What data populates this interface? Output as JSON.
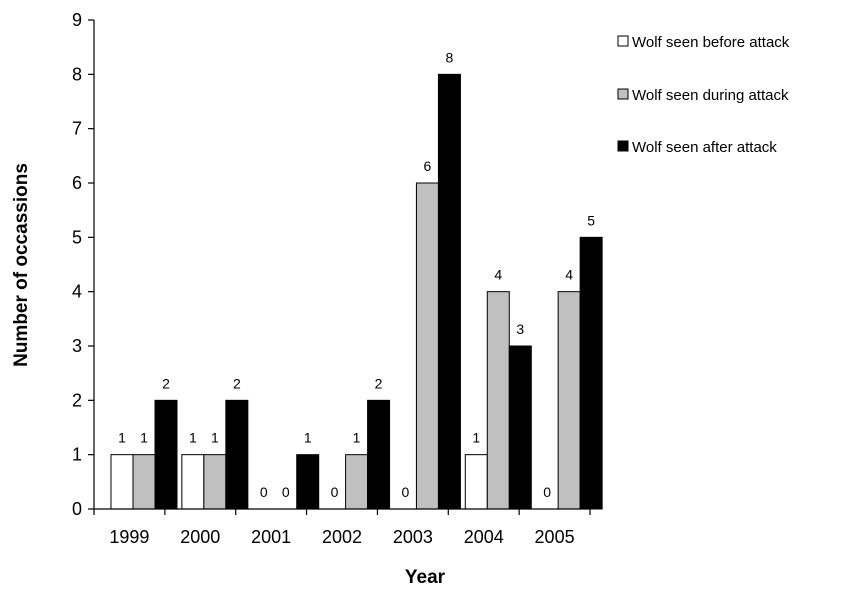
{
  "chart_data": {
    "type": "bar",
    "title": "",
    "xlabel": "Year",
    "ylabel": "Number of occassions",
    "categories": [
      "1999",
      "2000",
      "2001",
      "2002",
      "2003",
      "2004",
      "2005"
    ],
    "ylim": [
      0,
      9
    ],
    "yticks": [
      "0",
      "1",
      "2",
      "3",
      "4",
      "5",
      "6",
      "7",
      "8",
      "9"
    ],
    "grid": false,
    "legend_position": "top-right",
    "series": [
      {
        "name": "Wolf seen before attack",
        "color": "#ffffff",
        "values": [
          1,
          1,
          0,
          0,
          0,
          1,
          0
        ],
        "labels": [
          "1",
          "1",
          "0",
          "0",
          "0",
          "1",
          "0"
        ]
      },
      {
        "name": "Wolf seen during attack",
        "color": "#c0c0c0",
        "values": [
          1,
          1,
          0,
          1,
          6,
          4,
          4
        ],
        "labels": [
          "1",
          "1",
          "0",
          "1",
          "6",
          "4",
          "4"
        ]
      },
      {
        "name": "Wolf seen after attack",
        "color": "#000000",
        "values": [
          2,
          2,
          1,
          2,
          8,
          3,
          5
        ],
        "labels": [
          "2",
          "2",
          "1",
          "2",
          "8",
          "3",
          "5"
        ]
      }
    ]
  }
}
